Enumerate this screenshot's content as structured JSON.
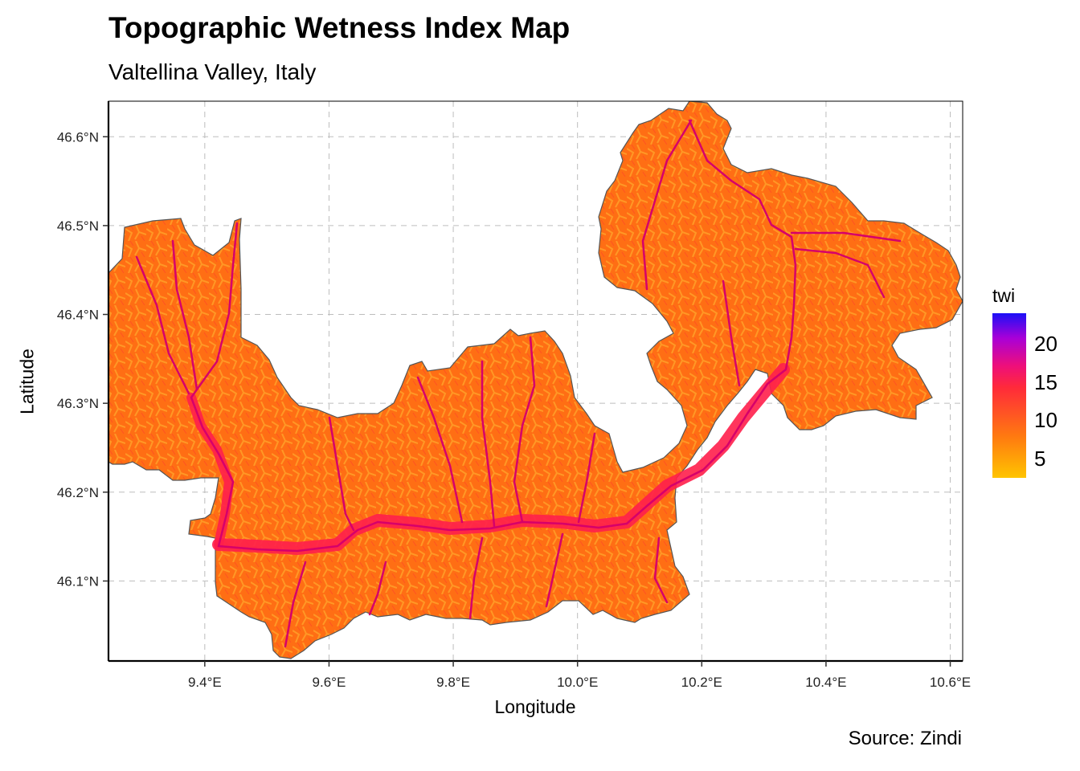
{
  "title": "Topographic Wetness Index Map",
  "subtitle": "Valtellina Valley, Italy",
  "caption": "Source: Zindi",
  "map": {
    "xlabel": "Longitude",
    "ylabel": "Latitude",
    "xlim": [
      9.245,
      10.62
    ],
    "ylim": [
      46.01,
      46.64
    ],
    "x_ticks": [
      {
        "value": 9.4,
        "label": "9.4°E"
      },
      {
        "value": 9.6,
        "label": "9.6°E"
      },
      {
        "value": 9.8,
        "label": "9.8°E"
      },
      {
        "value": 10.0,
        "label": "10.0°E"
      },
      {
        "value": 10.2,
        "label": "10.2°E"
      },
      {
        "value": 10.4,
        "label": "10.4°E"
      },
      {
        "value": 10.6,
        "label": "10.6°E"
      }
    ],
    "y_ticks": [
      {
        "value": 46.1,
        "label": "46.1°N"
      },
      {
        "value": 46.2,
        "label": "46.2°N"
      },
      {
        "value": 46.3,
        "label": "46.3°N"
      },
      {
        "value": 46.4,
        "label": "46.4°N"
      },
      {
        "value": 46.5,
        "label": "46.5°N"
      },
      {
        "value": 46.6,
        "label": "46.6°N"
      }
    ],
    "fill_color": "#ff6e14",
    "border_color": "#555555",
    "river_color": "#d6006a",
    "valley_floor_color": "#ff1f4b",
    "grid": true
  },
  "legend": {
    "title": "twi",
    "ticks": [
      {
        "value": 5,
        "label": "5"
      },
      {
        "value": 10,
        "label": "10"
      },
      {
        "value": 15,
        "label": "15"
      },
      {
        "value": 20,
        "label": "20"
      }
    ],
    "range": [
      2.5,
      24
    ],
    "colors": [
      "#ffc400",
      "#ff7a10",
      "#ff2a3a",
      "#ee0f7a",
      "#a800d8",
      "#1c10f7"
    ]
  }
}
